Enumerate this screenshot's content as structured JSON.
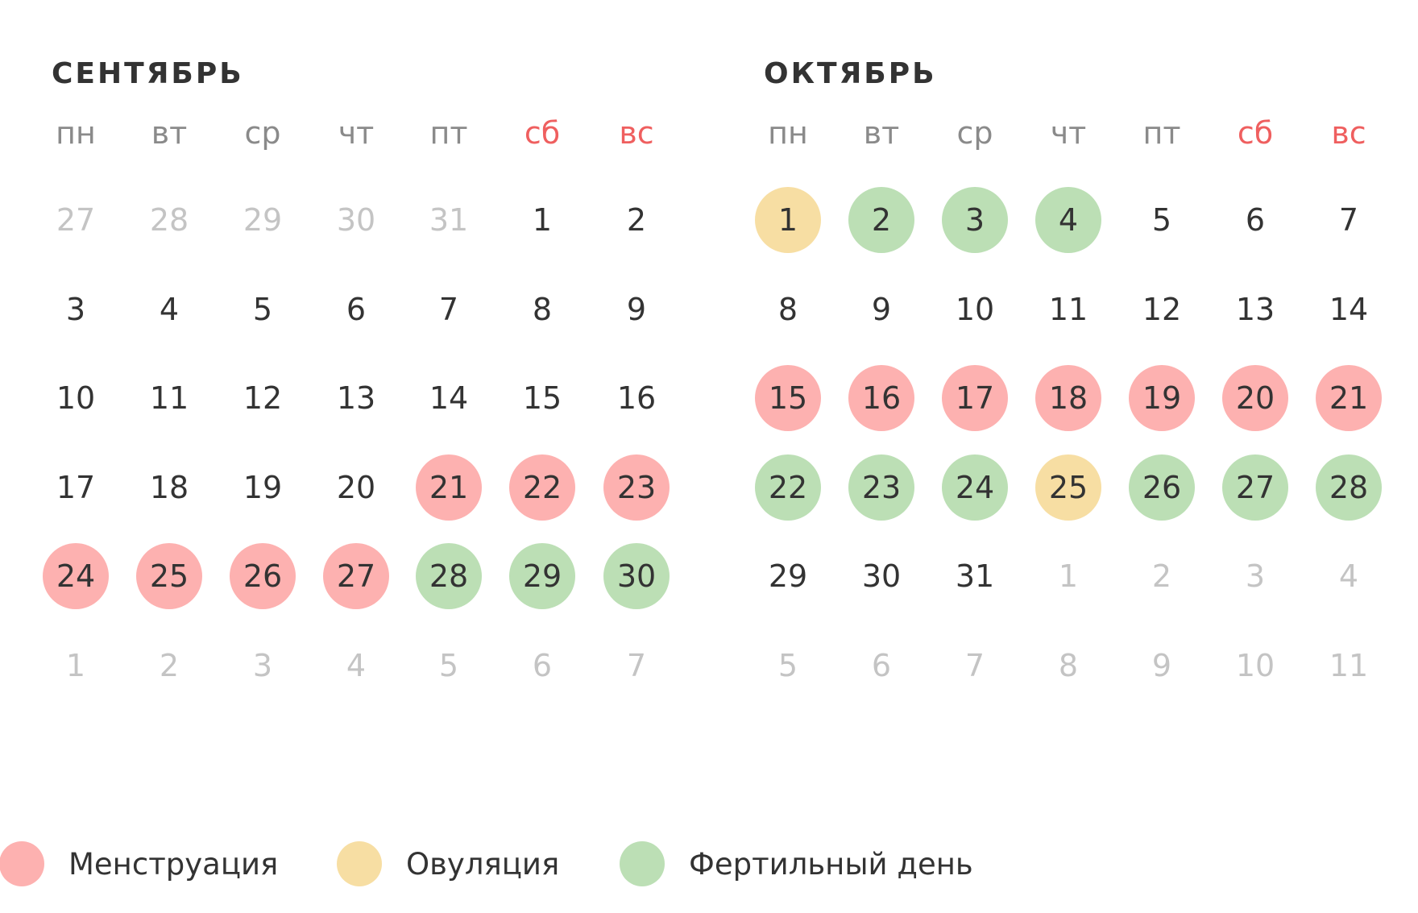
{
  "colors": {
    "menstruation": "#fdb1b0",
    "ovulation": "#f7dea3",
    "fertile": "#bcdfb5",
    "weekend_header": "#ef5f5f",
    "weekday_header": "#8a8a8a",
    "text": "#333333",
    "other_month": "#c4c4c4"
  },
  "weekdays": [
    "пн",
    "вт",
    "ср",
    "чт",
    "пт",
    "сб",
    "вс"
  ],
  "months": [
    {
      "title": "Сентябрь",
      "weeks": [
        [
          {
            "d": "27",
            "o": 1
          },
          {
            "d": "28",
            "o": 1
          },
          {
            "d": "29",
            "o": 1
          },
          {
            "d": "30",
            "o": 1
          },
          {
            "d": "31",
            "o": 1
          },
          {
            "d": "1"
          },
          {
            "d": "2"
          }
        ],
        [
          {
            "d": "3"
          },
          {
            "d": "4"
          },
          {
            "d": "5"
          },
          {
            "d": "6"
          },
          {
            "d": "7"
          },
          {
            "d": "8"
          },
          {
            "d": "9"
          }
        ],
        [
          {
            "d": "10"
          },
          {
            "d": "11"
          },
          {
            "d": "12"
          },
          {
            "d": "13"
          },
          {
            "d": "14"
          },
          {
            "d": "15"
          },
          {
            "d": "16"
          }
        ],
        [
          {
            "d": "17"
          },
          {
            "d": "18"
          },
          {
            "d": "19"
          },
          {
            "d": "20"
          },
          {
            "d": "21",
            "t": "menstruation"
          },
          {
            "d": "22",
            "t": "menstruation"
          },
          {
            "d": "23",
            "t": "menstruation"
          }
        ],
        [
          {
            "d": "24",
            "t": "menstruation"
          },
          {
            "d": "25",
            "t": "menstruation"
          },
          {
            "d": "26",
            "t": "menstruation"
          },
          {
            "d": "27",
            "t": "menstruation"
          },
          {
            "d": "28",
            "t": "fertile"
          },
          {
            "d": "29",
            "t": "fertile"
          },
          {
            "d": "30",
            "t": "fertile"
          }
        ],
        [
          {
            "d": "1",
            "o": 1
          },
          {
            "d": "2",
            "o": 1
          },
          {
            "d": "3",
            "o": 1
          },
          {
            "d": "4",
            "o": 1
          },
          {
            "d": "5",
            "o": 1
          },
          {
            "d": "6",
            "o": 1
          },
          {
            "d": "7",
            "o": 1
          }
        ]
      ]
    },
    {
      "title": "Октябрь",
      "weeks": [
        [
          {
            "d": "1",
            "t": "ovulation"
          },
          {
            "d": "2",
            "t": "fertile"
          },
          {
            "d": "3",
            "t": "fertile"
          },
          {
            "d": "4",
            "t": "fertile"
          },
          {
            "d": "5"
          },
          {
            "d": "6"
          },
          {
            "d": "7"
          }
        ],
        [
          {
            "d": "8"
          },
          {
            "d": "9"
          },
          {
            "d": "10"
          },
          {
            "d": "11"
          },
          {
            "d": "12"
          },
          {
            "d": "13"
          },
          {
            "d": "14"
          }
        ],
        [
          {
            "d": "15",
            "t": "menstruation"
          },
          {
            "d": "16",
            "t": "menstruation"
          },
          {
            "d": "17",
            "t": "menstruation"
          },
          {
            "d": "18",
            "t": "menstruation"
          },
          {
            "d": "19",
            "t": "menstruation"
          },
          {
            "d": "20",
            "t": "menstruation"
          },
          {
            "d": "21",
            "t": "menstruation"
          }
        ],
        [
          {
            "d": "22",
            "t": "fertile"
          },
          {
            "d": "23",
            "t": "fertile"
          },
          {
            "d": "24",
            "t": "fertile"
          },
          {
            "d": "25",
            "t": "ovulation"
          },
          {
            "d": "26",
            "t": "fertile"
          },
          {
            "d": "27",
            "t": "fertile"
          },
          {
            "d": "28",
            "t": "fertile"
          }
        ],
        [
          {
            "d": "29"
          },
          {
            "d": "30"
          },
          {
            "d": "31"
          },
          {
            "d": "1",
            "o": 1
          },
          {
            "d": "2",
            "o": 1
          },
          {
            "d": "3",
            "o": 1
          },
          {
            "d": "4",
            "o": 1
          }
        ],
        [
          {
            "d": "5",
            "o": 1
          },
          {
            "d": "6",
            "o": 1
          },
          {
            "d": "7",
            "o": 1
          },
          {
            "d": "8",
            "o": 1
          },
          {
            "d": "9",
            "o": 1
          },
          {
            "d": "10",
            "o": 1
          },
          {
            "d": "11",
            "o": 1
          }
        ]
      ]
    }
  ],
  "legend": [
    {
      "key": "menstruation",
      "label": "Менструация"
    },
    {
      "key": "ovulation",
      "label": "Овуляция"
    },
    {
      "key": "fertile",
      "label": "Фертильный день"
    }
  ]
}
